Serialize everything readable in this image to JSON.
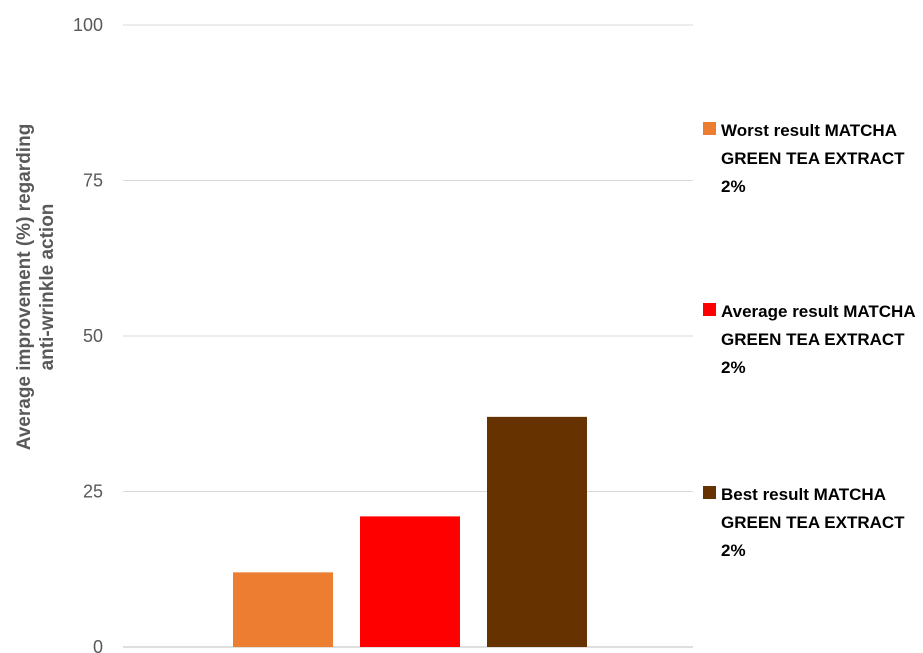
{
  "chart_data": {
    "type": "bar",
    "ylabel": "Average improvement (%) regarding anti-wrinkle action",
    "ylim": [
      0,
      100
    ],
    "yticks": [
      0,
      25,
      50,
      75,
      100
    ],
    "grid": true,
    "legend_position": "right",
    "series": [
      {
        "name": "Worst result MATCHA GREEN TEA EXTRACT 2%",
        "values": [
          12
        ],
        "color": "#ED7D31"
      },
      {
        "name": "Average result MATCHA GREEN TEA EXTRACT 2%",
        "values": [
          21
        ],
        "color": "#FF0000"
      },
      {
        "name": "Best result MATCHA GREEN TEA EXTRACT 2%",
        "values": [
          37
        ],
        "color": "#663300"
      }
    ]
  }
}
